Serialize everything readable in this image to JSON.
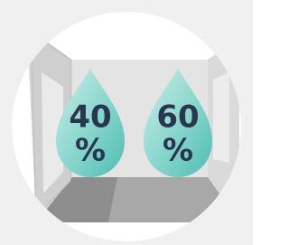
{
  "drops": [
    {
      "value": "40",
      "unit": "%"
    },
    {
      "value": "60",
      "unit": "%"
    }
  ]
}
